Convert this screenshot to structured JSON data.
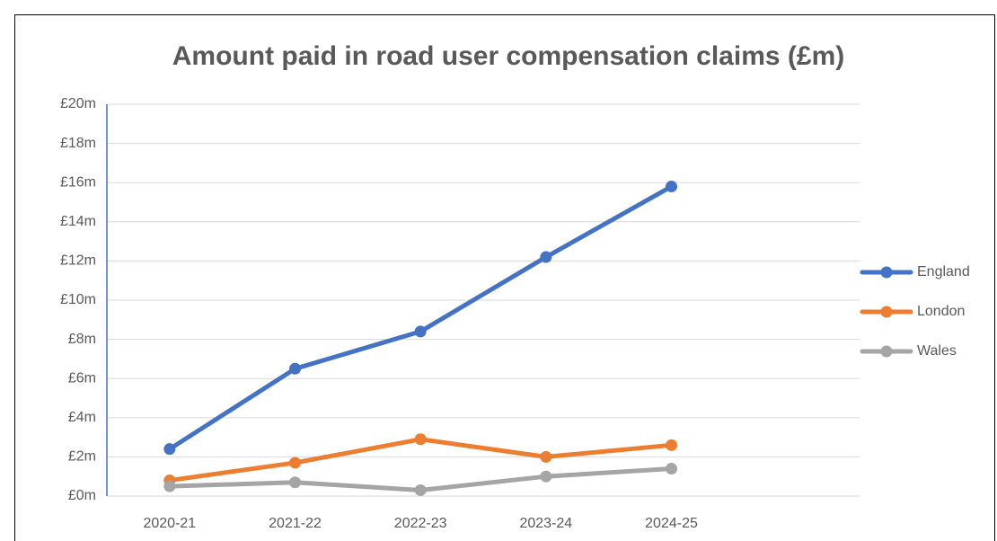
{
  "chart_data": {
    "type": "line",
    "title": "Amount paid in road user compensation claims (£m)",
    "categories": [
      "2020-21",
      "2021-22",
      "2022-23",
      "2023-24",
      "2024-25",
      null
    ],
    "series": [
      {
        "name": "England",
        "color": "#4472c4",
        "values": [
          2.4,
          6.5,
          8.4,
          12.2,
          15.8,
          null
        ]
      },
      {
        "name": "London",
        "color": "#ed7d31",
        "values": [
          0.8,
          1.7,
          2.9,
          2.0,
          2.6,
          null
        ]
      },
      {
        "name": "Wales",
        "color": "#a5a5a5",
        "values": [
          0.5,
          0.7,
          0.3,
          1.0,
          1.4,
          null
        ]
      }
    ],
    "ylim": [
      0,
      20
    ],
    "yticks": [
      {
        "value": 0,
        "label": "£0m"
      },
      {
        "value": 2,
        "label": "£2m"
      },
      {
        "value": 4,
        "label": "£4m"
      },
      {
        "value": 6,
        "label": "£6m"
      },
      {
        "value": 8,
        "label": "£8m"
      },
      {
        "value": 10,
        "label": "£10m"
      },
      {
        "value": 12,
        "label": "£12m"
      },
      {
        "value": 14,
        "label": "£14m"
      },
      {
        "value": 16,
        "label": "£16m"
      },
      {
        "value": 18,
        "label": "£18m"
      },
      {
        "value": 20,
        "label": "£20m"
      }
    ],
    "grid": true,
    "legend": "right"
  }
}
